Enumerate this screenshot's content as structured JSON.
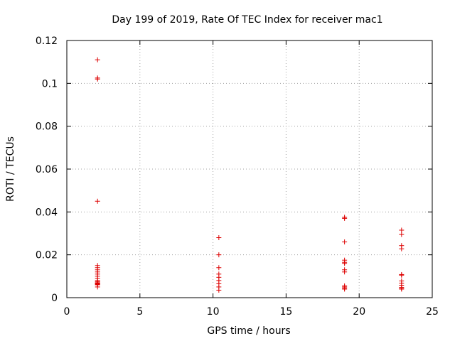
{
  "chart_data": {
    "type": "scatter",
    "title": "Day 199 of 2019, Rate Of TEC Index for receiver mac1",
    "xlabel": "GPS time / hours",
    "ylabel": "ROTI / TECUs",
    "xlim": [
      0,
      25
    ],
    "ylim": [
      0,
      0.12
    ],
    "x_ticks": [
      "0",
      "5",
      "10",
      "15",
      "20",
      "25"
    ],
    "x_tick_values": [
      0,
      5,
      10,
      15,
      20,
      25
    ],
    "y_ticks": [
      "0",
      "0.02",
      "0.04",
      "0.06",
      "0.08",
      "0.1",
      "0.12"
    ],
    "y_tick_values": [
      0,
      0.02,
      0.04,
      0.06,
      0.08,
      0.1,
      0.12
    ],
    "grid": true,
    "marker": "+",
    "color": "#dd0000",
    "series": [
      {
        "x": [
          2.1,
          2.1,
          2.1,
          2.1,
          2.1,
          2.1,
          2.1,
          2.1,
          2.1,
          2.1,
          2.1,
          2.1,
          2.1,
          2.1,
          2.1,
          2.1,
          2.1,
          2.1,
          2.1,
          10.4,
          10.4,
          10.4,
          10.4,
          10.4,
          10.4,
          10.4,
          10.4,
          10.4,
          19.0,
          19.0,
          19.0,
          19.0,
          19.0,
          19.0,
          19.0,
          19.0,
          19.0,
          19.0,
          19.0,
          19.0,
          22.9,
          22.9,
          22.9,
          22.9,
          22.9,
          22.9,
          22.9,
          22.9,
          22.9,
          22.9,
          22.9,
          22.9
        ],
        "y": [
          0.111,
          0.1025,
          0.102,
          0.045,
          0.015,
          0.014,
          0.013,
          0.012,
          0.011,
          0.01,
          0.009,
          0.008,
          0.0075,
          0.007,
          0.0068,
          0.0065,
          0.0063,
          0.006,
          0.005,
          0.028,
          0.02,
          0.014,
          0.011,
          0.0095,
          0.008,
          0.0065,
          0.005,
          0.0035,
          0.0375,
          0.037,
          0.026,
          0.0175,
          0.0165,
          0.016,
          0.013,
          0.012,
          0.0055,
          0.005,
          0.0045,
          0.004,
          0.0315,
          0.0295,
          0.0243,
          0.0228,
          0.0108,
          0.0105,
          0.0078,
          0.0068,
          0.0058,
          0.0048,
          0.0042,
          0.004
        ]
      }
    ]
  }
}
